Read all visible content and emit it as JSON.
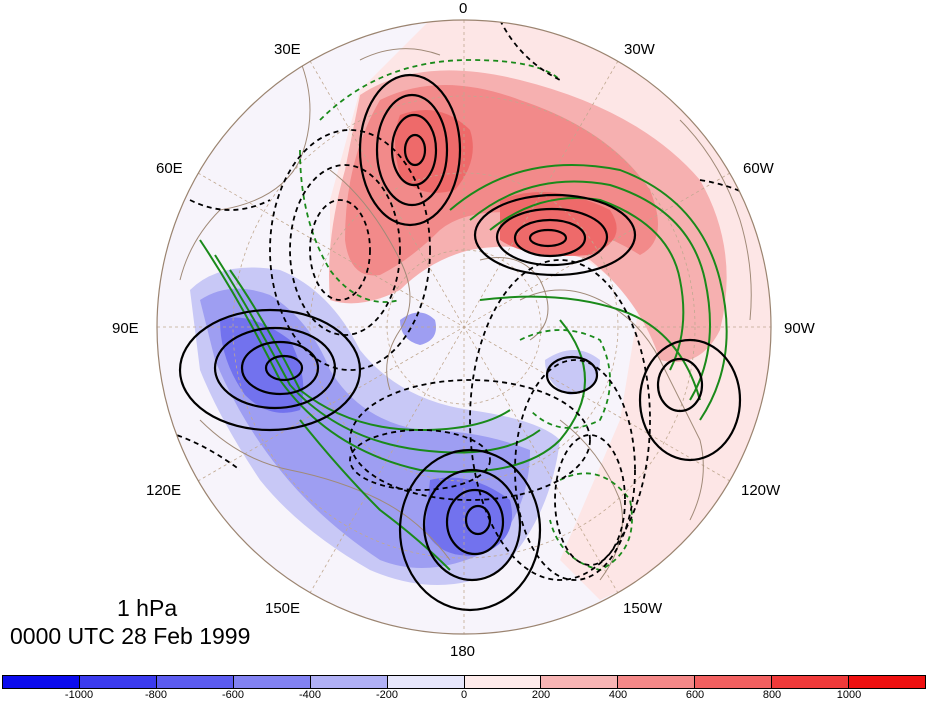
{
  "title": {
    "level": "1 hPa",
    "time": "0000 UTC 28 Feb 1999"
  },
  "longitude_labels": {
    "top": "0",
    "bottom": "180",
    "e30": "30E",
    "e60": "60E",
    "e90": "90E",
    "e120": "120E",
    "e150": "150E",
    "w30": "30W",
    "w60": "60W",
    "w90": "90W",
    "w120": "120W",
    "w150": "150W"
  },
  "colorbar": {
    "colors": [
      "#0c0ced",
      "#3b3bee",
      "#5c5cf0",
      "#8282f2",
      "#b0b0f5",
      "#e6e6fb",
      "#fdeaea",
      "#f7b4b4",
      "#f48888",
      "#f26060",
      "#f03a3a",
      "#ee1010"
    ],
    "ticks": [
      "-1000",
      "-800",
      "-600",
      "-400",
      "-200",
      "0",
      "200",
      "400",
      "600",
      "800",
      "1000"
    ]
  },
  "colors": {
    "positive_contour": "#000000",
    "negative_contour": "#000000",
    "green_contour": "#1a8a1a",
    "coastline": "#a08a78",
    "grid": "#c0a890"
  }
}
